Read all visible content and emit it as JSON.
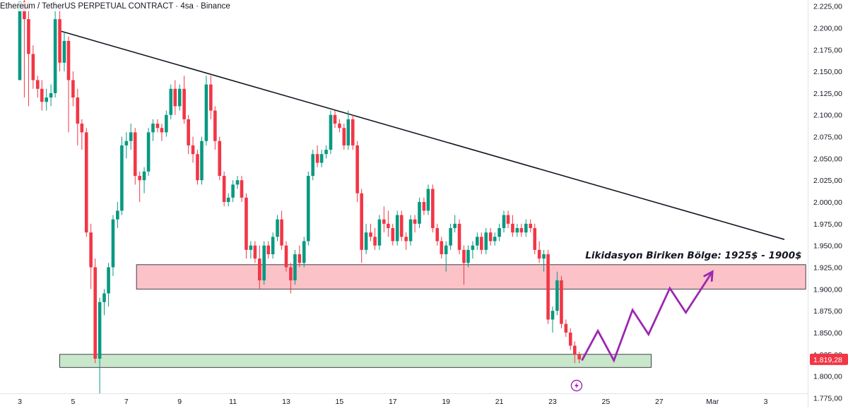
{
  "title": "Ethereum / TetherUS PERPETUAL CONTRACT · 4sa · Binance",
  "chart_data": {
    "type": "candlestick",
    "y_axis": {
      "side": "right",
      "ylim": [
        1764,
        2232
      ],
      "ticks": [
        "1.775,00",
        "1.800,00",
        "1.825,00",
        "1.850,00",
        "1.875,00",
        "1.900,00",
        "1.925,00",
        "1.950,00",
        "1.975,00",
        "2.000,00",
        "2.025,00",
        "2.050,00",
        "2.075,00",
        "2.100,00",
        "2.125,00",
        "2.150,00",
        "2.175,00",
        "2.200,00",
        "2.225,00"
      ],
      "tick_values": [
        1775,
        1800,
        1825,
        1850,
        1875,
        1900,
        1925,
        1950,
        1975,
        2000,
        2025,
        2050,
        2075,
        2100,
        2125,
        2150,
        2175,
        2200,
        2225
      ]
    },
    "x_axis": {
      "ticks": [
        "3",
        "5",
        "7",
        "9",
        "11",
        "13",
        "15",
        "17",
        "19",
        "21",
        "23",
        "25",
        "27",
        "Mar",
        "3"
      ],
      "tick_days": [
        3,
        5,
        7,
        9,
        11,
        13,
        15,
        17,
        19,
        21,
        23,
        25,
        27,
        29,
        31
      ],
      "xlim_days": [
        2.1,
        32.5
      ]
    },
    "last_price": {
      "label": "1.819,28",
      "value": 1819.28,
      "color": "#f23645"
    },
    "colors": {
      "up": "#089981",
      "down": "#f23645",
      "trendline": "#131722",
      "projection": "#9c27b0"
    },
    "candles": [
      [
        3.0,
        2140,
        2230,
        2140,
        2230
      ],
      [
        3.17,
        2230,
        2232,
        2120,
        2210
      ],
      [
        3.33,
        2210,
        2230,
        2110,
        2170
      ],
      [
        3.5,
        2170,
        2180,
        2130,
        2140
      ],
      [
        3.67,
        2140,
        2145,
        2120,
        2130
      ],
      [
        3.83,
        2130,
        2140,
        2105,
        2115
      ],
      [
        4.0,
        2115,
        2130,
        2105,
        2120
      ],
      [
        4.17,
        2120,
        2135,
        2110,
        2125
      ],
      [
        4.33,
        2125,
        2230,
        2120,
        2210
      ],
      [
        4.5,
        2210,
        2225,
        2150,
        2160
      ],
      [
        4.67,
        2160,
        2195,
        2150,
        2185
      ],
      [
        4.83,
        2185,
        2190,
        2080,
        2140
      ],
      [
        5.0,
        2140,
        2150,
        2110,
        2120
      ],
      [
        5.17,
        2120,
        2130,
        2065,
        2090
      ],
      [
        5.33,
        2090,
        2095,
        2060,
        2080
      ],
      [
        5.5,
        2080,
        2085,
        1960,
        1965
      ],
      [
        5.67,
        1965,
        1975,
        1900,
        1925
      ],
      [
        5.83,
        1925,
        1935,
        1815,
        1820
      ],
      [
        6.0,
        1820,
        1890,
        1765,
        1885
      ],
      [
        6.17,
        1885,
        1900,
        1870,
        1895
      ],
      [
        6.33,
        1895,
        1930,
        1880,
        1925
      ],
      [
        6.5,
        1925,
        1985,
        1915,
        1980
      ],
      [
        6.67,
        1980,
        2000,
        1970,
        1990
      ],
      [
        6.83,
        1990,
        2075,
        1985,
        2065
      ],
      [
        7.0,
        2065,
        2080,
        2050,
        2070
      ],
      [
        7.17,
        2070,
        2090,
        2060,
        2080
      ],
      [
        7.33,
        2080,
        2085,
        2020,
        2030
      ],
      [
        7.5,
        2030,
        2035,
        2000,
        2025
      ],
      [
        7.67,
        2025,
        2040,
        2010,
        2035
      ],
      [
        7.83,
        2035,
        2085,
        2030,
        2080
      ],
      [
        8.0,
        2080,
        2095,
        2070,
        2090
      ],
      [
        8.17,
        2090,
        2095,
        2080,
        2085
      ],
      [
        8.33,
        2085,
        2090,
        2070,
        2080
      ],
      [
        8.5,
        2080,
        2105,
        2075,
        2100
      ],
      [
        8.67,
        2100,
        2135,
        2095,
        2130
      ],
      [
        8.83,
        2130,
        2140,
        2100,
        2110
      ],
      [
        9.0,
        2110,
        2135,
        2105,
        2130
      ],
      [
        9.17,
        2130,
        2145,
        2090,
        2095
      ],
      [
        9.33,
        2095,
        2100,
        2055,
        2065
      ],
      [
        9.5,
        2065,
        2075,
        2045,
        2055
      ],
      [
        9.67,
        2055,
        2060,
        2020,
        2025
      ],
      [
        9.83,
        2025,
        2075,
        2020,
        2070
      ],
      [
        10.0,
        2070,
        2145,
        2065,
        2135
      ],
      [
        10.17,
        2135,
        2145,
        2095,
        2105
      ],
      [
        10.33,
        2105,
        2110,
        2060,
        2070
      ],
      [
        10.5,
        2070,
        2075,
        2025,
        2030
      ],
      [
        10.67,
        2030,
        2035,
        1995,
        2000
      ],
      [
        10.83,
        2000,
        2010,
        1995,
        2005
      ],
      [
        11.0,
        2005,
        2025,
        2000,
        2020
      ],
      [
        11.17,
        2020,
        2030,
        2015,
        2025
      ],
      [
        11.33,
        2025,
        2030,
        2000,
        2005
      ],
      [
        11.5,
        2005,
        2010,
        1935,
        1945
      ],
      [
        11.67,
        1945,
        1955,
        1935,
        1950
      ],
      [
        11.83,
        1950,
        1955,
        1930,
        1935
      ],
      [
        12.0,
        1935,
        1950,
        1900,
        1910
      ],
      [
        12.17,
        1910,
        1955,
        1905,
        1950
      ],
      [
        12.33,
        1950,
        1955,
        1935,
        1940
      ],
      [
        12.5,
        1940,
        1965,
        1935,
        1960
      ],
      [
        12.67,
        1960,
        1985,
        1955,
        1980
      ],
      [
        12.83,
        1980,
        1990,
        1945,
        1950
      ],
      [
        13.0,
        1950,
        1955,
        1920,
        1925
      ],
      [
        13.17,
        1925,
        1930,
        1895,
        1910
      ],
      [
        13.33,
        1910,
        1945,
        1905,
        1940
      ],
      [
        13.5,
        1940,
        1950,
        1925,
        1930
      ],
      [
        13.67,
        1930,
        1960,
        1925,
        1955
      ],
      [
        13.83,
        1955,
        2035,
        1950,
        2030
      ],
      [
        14.0,
        2030,
        2060,
        2025,
        2055
      ],
      [
        14.17,
        2055,
        2065,
        2040,
        2045
      ],
      [
        14.33,
        2045,
        2060,
        2040,
        2055
      ],
      [
        14.5,
        2055,
        2065,
        2050,
        2060
      ],
      [
        14.67,
        2060,
        2105,
        2055,
        2100
      ],
      [
        14.83,
        2100,
        2105,
        2085,
        2090
      ],
      [
        15.0,
        2090,
        2095,
        2080,
        2085
      ],
      [
        15.17,
        2085,
        2090,
        2060,
        2065
      ],
      [
        15.33,
        2065,
        2105,
        2060,
        2095
      ],
      [
        15.5,
        2095,
        2100,
        2060,
        2065
      ],
      [
        15.67,
        2065,
        2070,
        2000,
        2010
      ],
      [
        15.83,
        2010,
        2015,
        1930,
        1945
      ],
      [
        16.0,
        1945,
        1975,
        1940,
        1965
      ],
      [
        16.17,
        1965,
        1975,
        1955,
        1960
      ],
      [
        16.33,
        1960,
        1970,
        1945,
        1950
      ],
      [
        16.5,
        1950,
        1985,
        1945,
        1980
      ],
      [
        16.67,
        1980,
        1995,
        1965,
        1975
      ],
      [
        16.83,
        1975,
        1990,
        1960,
        1970
      ],
      [
        17.0,
        1970,
        1975,
        1950,
        1955
      ],
      [
        17.17,
        1955,
        1990,
        1950,
        1985
      ],
      [
        17.33,
        1985,
        1990,
        1955,
        1960
      ],
      [
        17.5,
        1960,
        1965,
        1945,
        1955
      ],
      [
        17.67,
        1955,
        1985,
        1950,
        1980
      ],
      [
        17.83,
        1980,
        1985,
        1965,
        1975
      ],
      [
        18.0,
        1975,
        2005,
        1970,
        2000
      ],
      [
        18.17,
        2000,
        2005,
        1985,
        1990
      ],
      [
        18.33,
        1990,
        2020,
        1985,
        2015
      ],
      [
        18.5,
        2015,
        2020,
        1965,
        1970
      ],
      [
        18.67,
        1970,
        1975,
        1950,
        1955
      ],
      [
        18.83,
        1955,
        1960,
        1935,
        1940
      ],
      [
        19.0,
        1940,
        1955,
        1920,
        1950
      ],
      [
        19.17,
        1950,
        1975,
        1945,
        1970
      ],
      [
        19.33,
        1970,
        1985,
        1965,
        1975
      ],
      [
        19.5,
        1975,
        1980,
        1940,
        1945
      ],
      [
        19.67,
        1945,
        1950,
        1905,
        1930
      ],
      [
        19.83,
        1930,
        1950,
        1925,
        1945
      ],
      [
        20.0,
        1945,
        1955,
        1935,
        1950
      ],
      [
        20.17,
        1950,
        1965,
        1945,
        1960
      ],
      [
        20.33,
        1960,
        1965,
        1940,
        1945
      ],
      [
        20.5,
        1945,
        1970,
        1940,
        1965
      ],
      [
        20.67,
        1965,
        1970,
        1950,
        1955
      ],
      [
        20.83,
        1955,
        1965,
        1950,
        1960
      ],
      [
        21.0,
        1960,
        1975,
        1955,
        1970
      ],
      [
        21.17,
        1970,
        1990,
        1965,
        1985
      ],
      [
        21.33,
        1985,
        1990,
        1970,
        1975
      ],
      [
        21.5,
        1975,
        1985,
        1960,
        1965
      ],
      [
        21.67,
        1965,
        1975,
        1960,
        1970
      ],
      [
        21.83,
        1970,
        1975,
        1960,
        1965
      ],
      [
        22.0,
        1965,
        1980,
        1960,
        1975
      ],
      [
        22.17,
        1975,
        1980,
        1965,
        1970
      ],
      [
        22.33,
        1970,
        1975,
        1940,
        1945
      ],
      [
        22.5,
        1945,
        1955,
        1930,
        1935
      ],
      [
        22.67,
        1935,
        1945,
        1920,
        1940
      ],
      [
        22.83,
        1940,
        1945,
        1860,
        1865
      ],
      [
        23.0,
        1865,
        1880,
        1850,
        1875
      ],
      [
        23.17,
        1875,
        1920,
        1870,
        1910
      ],
      [
        23.33,
        1910,
        1915,
        1855,
        1860
      ],
      [
        23.5,
        1860,
        1865,
        1845,
        1850
      ],
      [
        23.67,
        1850,
        1855,
        1830,
        1835
      ],
      [
        23.83,
        1835,
        1840,
        1815,
        1825
      ],
      [
        24.0,
        1825,
        1828,
        1815,
        1819.28
      ]
    ],
    "trendline": {
      "points": [
        [
          4.45,
          2197
        ],
        [
          31.7,
          1957
        ]
      ]
    },
    "zones": [
      {
        "x_days": [
          7.38,
          32.5
        ],
        "y_range": [
          1900,
          1928
        ],
        "color": "#f23645"
      },
      {
        "x_days": [
          4.5,
          26.7
        ],
        "y_range": [
          1810,
          1825
        ],
        "color": "#4caf50"
      }
    ],
    "projection_path": [
      [
        24.1,
        1818
      ],
      [
        24.7,
        1852
      ],
      [
        25.3,
        1818
      ],
      [
        26.0,
        1876
      ],
      [
        26.6,
        1848
      ],
      [
        27.4,
        1901
      ],
      [
        28.0,
        1873
      ],
      [
        29.0,
        1920
      ]
    ],
    "zone_label": {
      "text": "Likidasyon Biriken Bölge: 1925$ - 1900$",
      "anchor": [
        32.35,
        1935
      ]
    },
    "event_marker_day": 23.9
  }
}
